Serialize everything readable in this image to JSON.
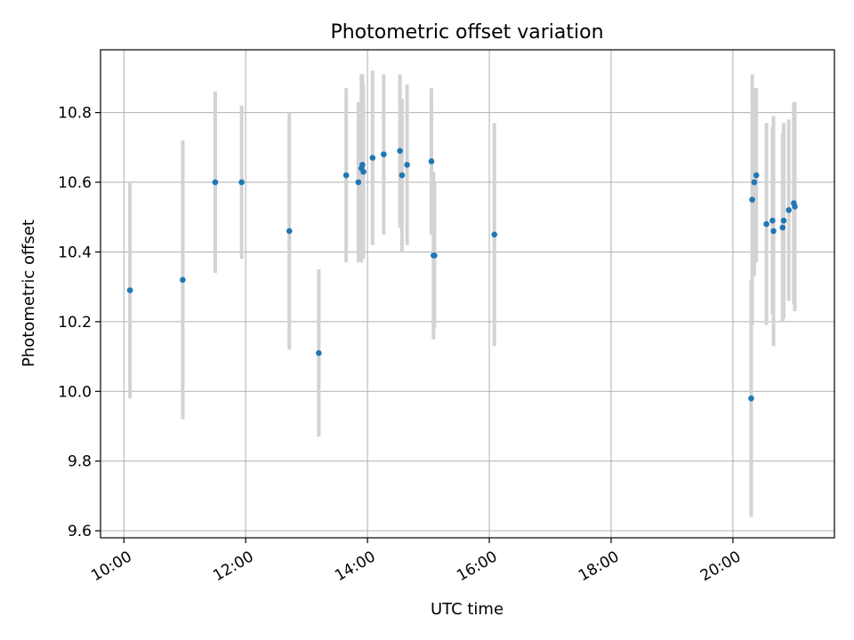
{
  "chart_data": {
    "type": "scatter",
    "title": "Photometric offset variation",
    "xlabel": "UTC time",
    "ylabel": "Photometric offset",
    "xlim": [
      "09:37",
      "21:40"
    ],
    "ylim": [
      9.58,
      10.98
    ],
    "x_ticks": [
      "10:00",
      "12:00",
      "14:00",
      "16:00",
      "18:00",
      "20:00"
    ],
    "y_ticks": [
      9.6,
      9.8,
      10.0,
      10.2,
      10.4,
      10.6,
      10.8
    ],
    "y_tick_labels": [
      "9.6",
      "9.8",
      "10.0",
      "10.2",
      "10.4",
      "10.6",
      "10.8"
    ],
    "grid": true,
    "colors": {
      "point": "#1f77b4",
      "errorbar": "#d3d3d3",
      "grid": "#b0b0b0"
    },
    "points": [
      {
        "x": "10:06",
        "y": 10.29,
        "err": 0.31
      },
      {
        "x": "10:58",
        "y": 10.32,
        "err": 0.4
      },
      {
        "x": "11:30",
        "y": 10.6,
        "err": 0.26
      },
      {
        "x": "11:56",
        "y": 10.6,
        "err": 0.22
      },
      {
        "x": "12:43",
        "y": 10.46,
        "err": 0.34
      },
      {
        "x": "13:12",
        "y": 10.11,
        "err": 0.24
      },
      {
        "x": "13:39",
        "y": 10.62,
        "err": 0.25
      },
      {
        "x": "13:51",
        "y": 10.6,
        "err": 0.23
      },
      {
        "x": "13:54",
        "y": 10.64,
        "err": 0.27
      },
      {
        "x": "13:55",
        "y": 10.65,
        "err": 0.26
      },
      {
        "x": "13:56",
        "y": 10.63,
        "err": 0.25
      },
      {
        "x": "14:05",
        "y": 10.67,
        "err": 0.25
      },
      {
        "x": "14:16",
        "y": 10.68,
        "err": 0.23
      },
      {
        "x": "14:32",
        "y": 10.69,
        "err": 0.22
      },
      {
        "x": "14:34",
        "y": 10.62,
        "err": 0.22
      },
      {
        "x": "14:39",
        "y": 10.65,
        "err": 0.23
      },
      {
        "x": "15:03",
        "y": 10.66,
        "err": 0.21
      },
      {
        "x": "15:05",
        "y": 10.39,
        "err": 0.24
      },
      {
        "x": "15:06",
        "y": 10.39,
        "err": 0.21
      },
      {
        "x": "16:05",
        "y": 10.45,
        "err": 0.32
      },
      {
        "x": "20:18",
        "y": 9.98,
        "err": 0.34
      },
      {
        "x": "20:19",
        "y": 10.55,
        "err": 0.36
      },
      {
        "x": "20:21",
        "y": 10.6,
        "err": 0.27
      },
      {
        "x": "20:23",
        "y": 10.62,
        "err": 0.25
      },
      {
        "x": "20:33",
        "y": 10.48,
        "err": 0.29
      },
      {
        "x": "20:39",
        "y": 10.49,
        "err": 0.27
      },
      {
        "x": "20:40",
        "y": 10.46,
        "err": 0.33
      },
      {
        "x": "20:49",
        "y": 10.47,
        "err": 0.27
      },
      {
        "x": "20:50",
        "y": 10.49,
        "err": 0.28
      },
      {
        "x": "20:55",
        "y": 10.52,
        "err": 0.26
      },
      {
        "x": "21:00",
        "y": 10.54,
        "err": 0.29
      },
      {
        "x": "21:01",
        "y": 10.53,
        "err": 0.3
      }
    ]
  }
}
